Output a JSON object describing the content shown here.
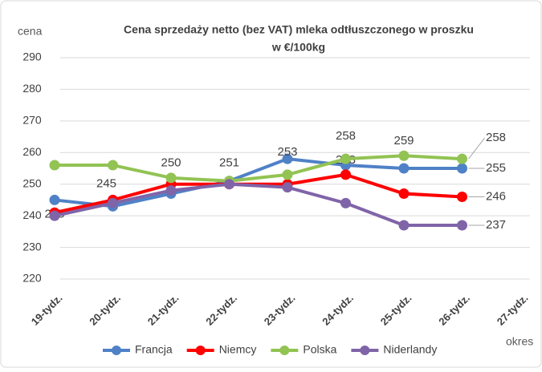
{
  "chart_data": {
    "type": "line",
    "title": "Cena sprzedaży netto (bez VAT) mleka odtłuszczonego w proszku",
    "subtitle": "w €/100kg",
    "y_label": "cena",
    "x_label": "okres",
    "categories": [
      "19-tydz.",
      "20-tydz.",
      "21-tydz.",
      "22-tydz.",
      "23-tydz.",
      "24-tydz.",
      "25-tydz.",
      "26-tydz.",
      "27-tydz."
    ],
    "series": [
      {
        "name": "Francja",
        "color": "#4f81c7",
        "values": [
          245,
          243,
          247,
          251,
          258,
          256,
          255,
          255,
          null
        ],
        "value_labels": [
          "245",
          null,
          null,
          null,
          null,
          null,
          null,
          "255",
          null
        ]
      },
      {
        "name": "Niemcy",
        "color": "#ff0000",
        "values": [
          241,
          245,
          250,
          250,
          250,
          253,
          247,
          246,
          null
        ],
        "value_labels": [
          null,
          "245",
          "250",
          null,
          null,
          "253",
          null,
          "246",
          null
        ]
      },
      {
        "name": "Polska",
        "color": "#92c353",
        "values": [
          256,
          256,
          252,
          251,
          253,
          258,
          259,
          258,
          null
        ],
        "value_labels": [
          null,
          null,
          null,
          "251",
          "253",
          "258",
          "259",
          "258",
          null
        ]
      },
      {
        "name": "Niderlandy",
        "color": "#8064a8",
        "values": [
          240,
          244,
          248,
          250,
          249,
          244,
          237,
          237,
          null
        ],
        "value_labels": [
          null,
          null,
          null,
          null,
          null,
          null,
          null,
          "237",
          null
        ]
      }
    ],
    "ylim": [
      220,
      290
    ],
    "yticks": [
      220,
      230,
      240,
      250,
      260,
      270,
      280,
      290
    ],
    "grid": true,
    "legend": "bottom"
  }
}
